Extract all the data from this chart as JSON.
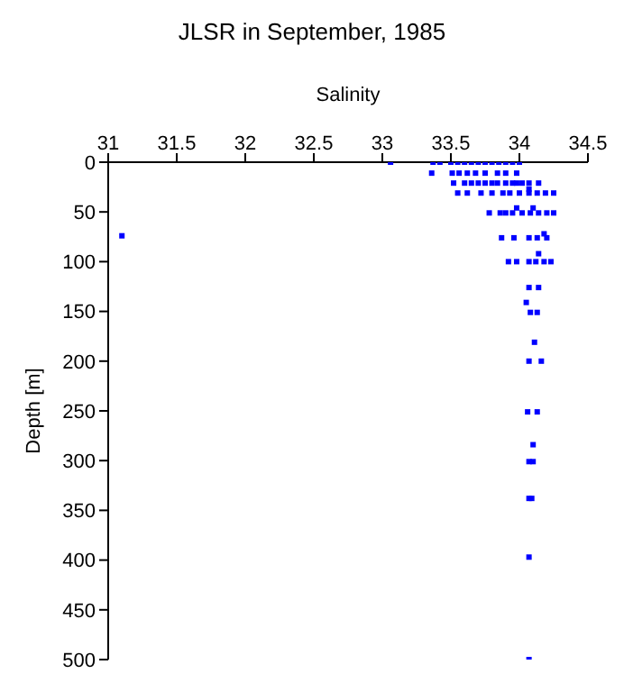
{
  "chart_data": {
    "type": "scatter",
    "title": "JLSR in September, 1985",
    "xlabel": "Salinity",
    "ylabel": "Depth [m]",
    "xlim": [
      31,
      34.5
    ],
    "xticks": [
      31,
      31.5,
      32,
      32.5,
      33,
      33.5,
      34,
      34.5
    ],
    "ylim": [
      500,
      0
    ],
    "yticks": [
      0,
      50,
      100,
      150,
      200,
      250,
      300,
      350,
      400,
      450,
      500
    ],
    "grid": false,
    "legend": false,
    "marker": "square",
    "series": [
      {
        "color": "#0000ff",
        "x": [
          33.06,
          33.37,
          33.42,
          33.5,
          33.55,
          33.6,
          33.65,
          33.7,
          33.75,
          33.8,
          33.85,
          33.9,
          33.95,
          34.0,
          33.36,
          33.51,
          33.56,
          33.62,
          33.68,
          33.75,
          33.84,
          33.9,
          33.98,
          33.52,
          33.6,
          33.65,
          33.7,
          33.75,
          33.8,
          33.84,
          33.9,
          33.95,
          33.98,
          34.02,
          34.07,
          34.14,
          34.07,
          33.55,
          33.62,
          33.72,
          33.8,
          33.88,
          33.93,
          34.0,
          34.07,
          34.13,
          34.19,
          34.25,
          33.98,
          34.1,
          33.78,
          33.86,
          33.9,
          33.95,
          34.02,
          34.08,
          34.14,
          34.2,
          34.25,
          31.1,
          34.18,
          33.87,
          33.96,
          34.07,
          34.13,
          34.2,
          34.14,
          33.92,
          33.98,
          34.07,
          34.12,
          34.18,
          34.23,
          34.07,
          34.14,
          34.05,
          34.08,
          34.13,
          34.11,
          34.07,
          34.16,
          34.06,
          34.13,
          34.1,
          34.07,
          34.1,
          34.07,
          34.09,
          34.07,
          34.07
        ],
        "values": [
          0,
          0,
          0,
          0,
          0,
          0,
          0,
          0,
          0,
          0,
          0,
          0,
          0,
          0,
          11,
          11,
          11,
          11,
          11,
          11,
          11,
          11,
          11,
          21,
          21,
          21,
          21,
          21,
          21,
          21,
          21,
          21,
          21,
          21,
          21,
          21,
          27,
          31,
          31,
          31,
          31,
          31,
          31,
          31,
          31,
          31,
          31,
          31,
          46,
          46,
          51,
          51,
          51,
          51,
          51,
          51,
          51,
          51,
          51,
          74,
          72,
          76,
          76,
          76,
          76,
          76,
          92,
          100,
          100,
          100,
          100,
          100,
          100,
          126,
          126,
          141,
          151,
          151,
          181,
          200,
          200,
          251,
          251,
          284,
          301,
          301,
          338,
          338,
          397,
          500
        ]
      }
    ]
  }
}
